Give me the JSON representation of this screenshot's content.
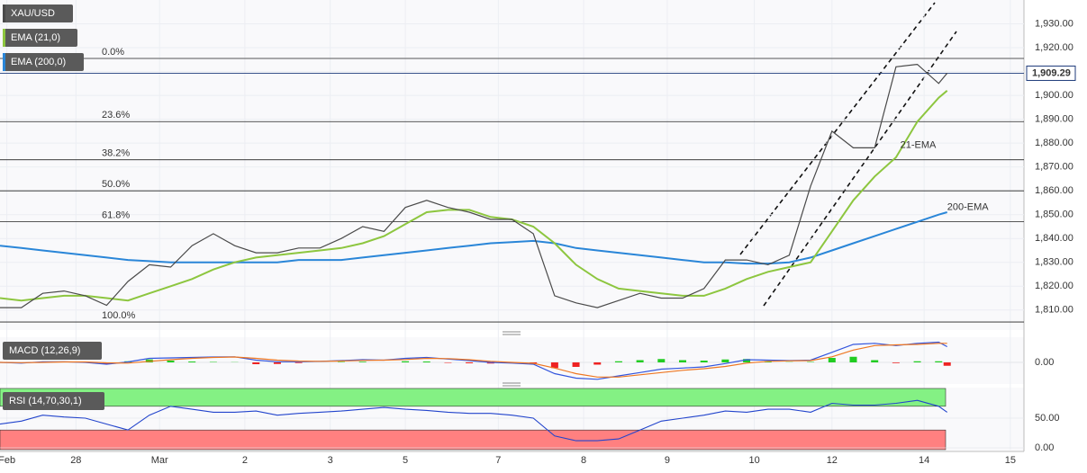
{
  "chart_data": [
    {
      "type": "line",
      "xlim": [
        0,
        12
      ],
      "xticks": [
        {
          "value": 0.08,
          "label": "Feb"
        },
        {
          "value": 0.89,
          "label": "28"
        },
        {
          "value": 1.87,
          "label": "Mar"
        },
        {
          "value": 2.87,
          "label": "2"
        },
        {
          "value": 3.87,
          "label": "3"
        },
        {
          "value": 4.75,
          "label": "5"
        },
        {
          "value": 5.84,
          "label": "7"
        },
        {
          "value": 6.84,
          "label": "8"
        },
        {
          "value": 7.82,
          "label": "9"
        },
        {
          "value": 8.84,
          "label": "10"
        },
        {
          "value": 9.75,
          "label": "12"
        },
        {
          "value": 10.83,
          "label": "14"
        },
        {
          "value": 11.84,
          "label": "15"
        }
      ],
      "ylim": [
        1802,
        1940
      ],
      "yticks": [
        {
          "value": 1810,
          "label": "1,810.00"
        },
        {
          "value": 1820,
          "label": "1,820.00"
        },
        {
          "value": 1830,
          "label": "1,830.00"
        },
        {
          "value": 1840,
          "label": "1,840.00"
        },
        {
          "value": 1850,
          "label": "1,850.00"
        },
        {
          "value": 1860,
          "label": "1,860.00"
        },
        {
          "value": 1870,
          "label": "1,870.00"
        },
        {
          "value": 1880,
          "label": "1,880.00"
        },
        {
          "value": 1890,
          "label": "1,890.00"
        },
        {
          "value": 1900,
          "label": "1,900.00"
        },
        {
          "value": 1910,
          "label": "1,910.00"
        },
        {
          "value": 1920,
          "label": "1,920.00"
        },
        {
          "value": 1930,
          "label": "1,930.00"
        }
      ],
      "grid": true,
      "x": [
        0,
        0.25,
        0.5,
        0.75,
        1,
        1.25,
        1.5,
        1.75,
        2,
        2.25,
        2.5,
        2.75,
        3,
        3.25,
        3.5,
        3.75,
        4,
        4.25,
        4.5,
        4.75,
        5,
        5.25,
        5.5,
        5.75,
        6,
        6.25,
        6.5,
        6.75,
        7,
        7.25,
        7.5,
        7.75,
        8,
        8.25,
        8.5,
        8.75,
        9,
        9.25,
        9.5,
        9.75,
        10,
        10.25,
        10.5,
        10.75,
        11,
        11.1
      ],
      "series": [
        {
          "name": "XAU/USD",
          "color": "#4a4a4a",
          "values": [
            1811,
            1811,
            1817,
            1818,
            1816,
            1812,
            1822,
            1829,
            1828,
            1837,
            1842,
            1837,
            1834,
            1834,
            1836,
            1836,
            1840,
            1845,
            1843,
            1853,
            1856,
            1853,
            1851,
            1848,
            1848,
            1842,
            1816,
            1813,
            1811,
            1814,
            1817,
            1815,
            1815,
            1819,
            1831,
            1831,
            1829,
            1833,
            1862,
            1885,
            1878,
            1878,
            1912,
            1913,
            1905,
            1909.29
          ]
        },
        {
          "name": "EMA (21,0)",
          "color": "#8dc63f",
          "values": [
            1815,
            1814,
            1815,
            1816,
            1816,
            1815,
            1814,
            1817,
            1820,
            1823,
            1827,
            1830,
            1832,
            1833,
            1834,
            1835,
            1836,
            1838,
            1841,
            1846,
            1851,
            1852,
            1852,
            1849,
            1848,
            1845,
            1838,
            1829,
            1823,
            1819,
            1818,
            1817,
            1816,
            1816,
            1819,
            1823,
            1826,
            1828,
            1830,
            1843,
            1856,
            1866,
            1874,
            1889,
            1899,
            1902
          ]
        },
        {
          "name": "EMA (200,0)",
          "color": "#2a86d8",
          "values": [
            1837,
            1836,
            1835,
            1834,
            1833,
            1832,
            1831,
            1830.5,
            1830,
            1830,
            1830,
            1830,
            1830,
            1830,
            1831,
            1831,
            1831,
            1832,
            1833,
            1834,
            1835,
            1836,
            1837,
            1838,
            1838.5,
            1839,
            1838,
            1836,
            1835,
            1834,
            1833,
            1832,
            1831,
            1830,
            1830,
            1829.5,
            1829.5,
            1830,
            1832,
            1835,
            1838,
            1841,
            1844,
            1847,
            1850,
            1851
          ]
        }
      ],
      "fib_levels": [
        {
          "label": "0.0%",
          "value": 1915.5
        },
        {
          "label": "23.6%",
          "value": 1889
        },
        {
          "label": "38.2%",
          "value": 1873
        },
        {
          "label": "50.0%",
          "value": 1860
        },
        {
          "label": "61.8%",
          "value": 1847
        },
        {
          "label": "100.0%",
          "value": 1805
        }
      ],
      "last_price": {
        "value": 1909.29,
        "label": "1,909.29"
      },
      "annotations": [
        {
          "text": "21-EMA",
          "color": "#8dc63f",
          "x": 10.55,
          "y": 1879
        },
        {
          "text": "200-EMA",
          "color": "#2a86d8",
          "x": 11.1,
          "y": 1853
        }
      ]
    },
    {
      "type": "macd",
      "title": "MACD (12,26,9)",
      "ylim": [
        -9.6,
        10.8
      ],
      "yticks": [
        {
          "value": 0,
          "label": "0.00"
        }
      ],
      "macd": {
        "color": "#3355dd",
        "values": [
          0,
          -0.3,
          0.3,
          0.3,
          0,
          -0.8,
          0.2,
          1.8,
          2,
          2.2,
          2.4,
          2.5,
          1,
          0.3,
          0.3,
          0.5,
          0.8,
          1.2,
          1,
          1.8,
          2.2,
          1.5,
          0.8,
          0,
          -0.3,
          -0.8,
          -5,
          -7,
          -7.5,
          -6,
          -4.5,
          -3,
          -2.5,
          -2,
          -0.5,
          1.2,
          1,
          0.8,
          1,
          4.5,
          8,
          8.5,
          7.5,
          8.5,
          9,
          7
        ]
      },
      "signal": {
        "color": "#ee7722",
        "values": [
          0,
          -0.1,
          0,
          0.2,
          0.2,
          -0.2,
          -0.3,
          0.5,
          1.2,
          1.8,
          2.2,
          2.4,
          1.8,
          1,
          0.6,
          0.5,
          0.6,
          0.9,
          1,
          1.3,
          1.8,
          1.7,
          1.2,
          0.5,
          0,
          -0.4,
          -2.5,
          -5,
          -6.5,
          -6.5,
          -5.5,
          -4.5,
          -3.5,
          -2.8,
          -1.8,
          -0.3,
          0.5,
          0.7,
          0.8,
          2.5,
          5.5,
          7.5,
          7.8,
          8,
          8.5,
          8.5
        ]
      },
      "histogram": [
        0,
        -0.2,
        0.3,
        0.1,
        -0.2,
        -0.6,
        0.5,
        1.3,
        0.8,
        0.4,
        0.2,
        0.1,
        -0.8,
        -0.7,
        -0.3,
        0,
        0.2,
        0.3,
        0,
        0.5,
        0.4,
        -0.2,
        -0.4,
        -0.5,
        -0.3,
        -0.4,
        -2.5,
        -2,
        -1,
        0.5,
        1,
        1.5,
        1,
        0.8,
        1.3,
        1.5,
        0.5,
        0.1,
        0.2,
        2,
        2.5,
        1,
        -0.3,
        0.5,
        0.5,
        -1.5
      ]
    },
    {
      "type": "rsi",
      "title": "RSI (14,70,30,1)",
      "ylim": [
        0,
        100
      ],
      "yticks": [
        {
          "value": 50,
          "label": "50.00"
        },
        {
          "value": 0,
          "label": "0.00"
        }
      ],
      "overbought": 70,
      "oversold": 30,
      "color": "#2244cc",
      "values": [
        40,
        45,
        55,
        52,
        50,
        40,
        30,
        55,
        70,
        65,
        60,
        60,
        62,
        55,
        58,
        60,
        62,
        65,
        68,
        65,
        63,
        60,
        58,
        58,
        55,
        50,
        20,
        12,
        12,
        15,
        30,
        45,
        50,
        55,
        62,
        60,
        65,
        65,
        60,
        75,
        72,
        72,
        75,
        80,
        70,
        60
      ]
    }
  ]
}
